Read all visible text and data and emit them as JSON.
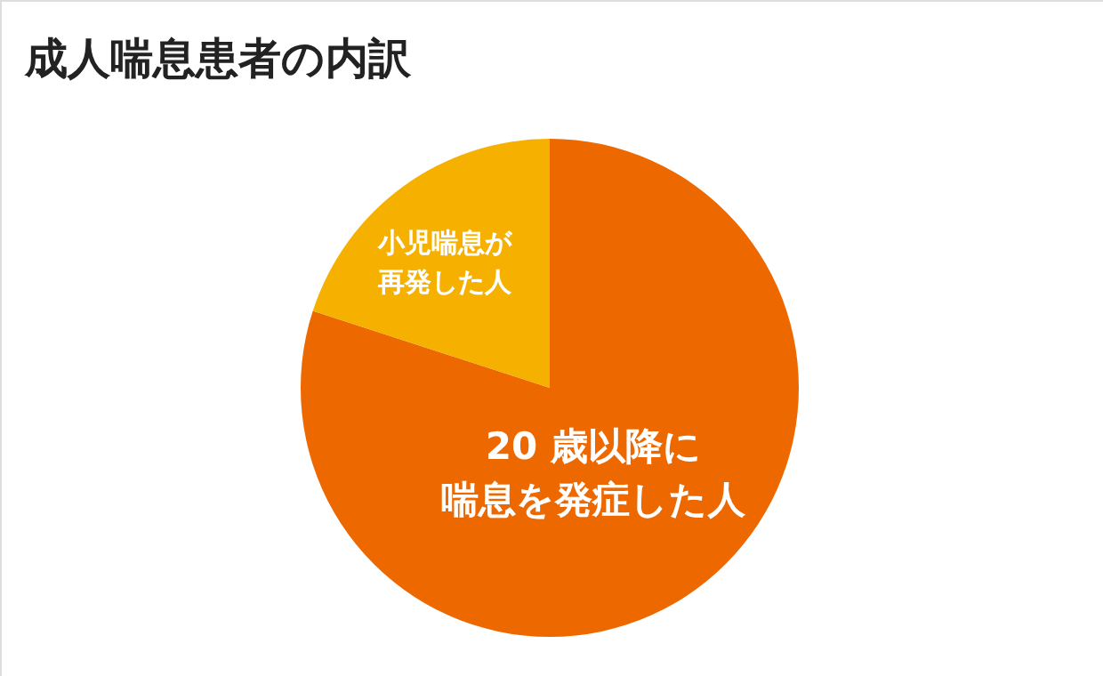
{
  "chart_data": {
    "type": "pie",
    "title": "成人喘息患者の内訳",
    "categories": [
      "20 歳以降に喘息を発症した人",
      "小児喘息が再発した人"
    ],
    "values": [
      80,
      20
    ],
    "colors": [
      "#ee6800",
      "#f6b100"
    ]
  }
}
